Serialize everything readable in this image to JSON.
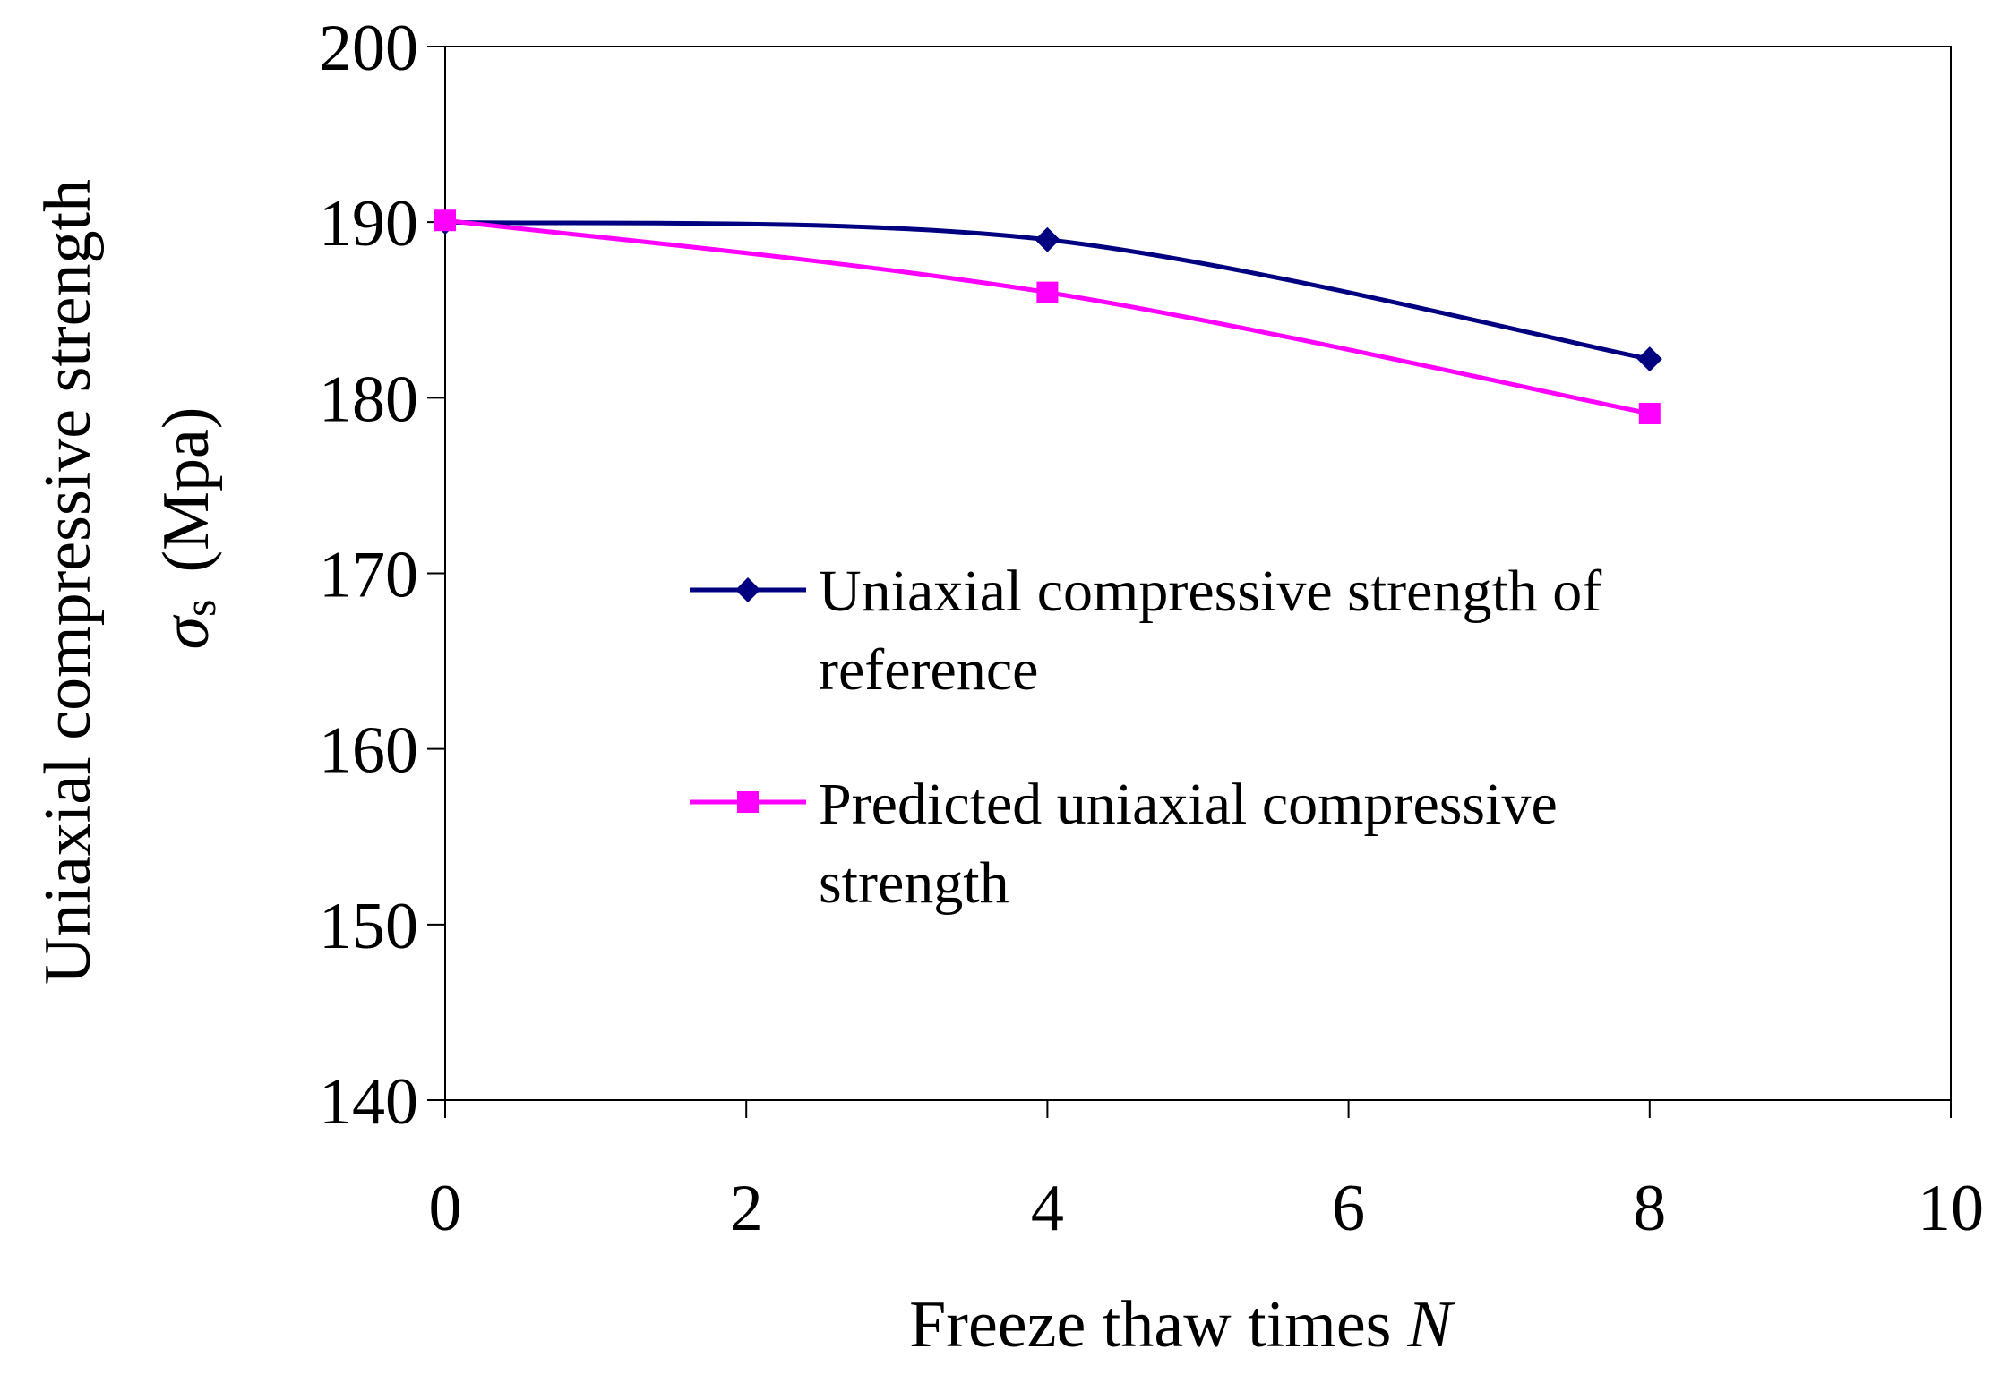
{
  "chart_data": {
    "type": "line",
    "x": [
      0,
      4,
      8
    ],
    "xlim": [
      0,
      10
    ],
    "xticks": [
      "0",
      "2",
      "4",
      "6",
      "8",
      "10"
    ],
    "ylim": [
      140,
      200
    ],
    "yticks": [
      "140",
      "150",
      "160",
      "170",
      "180",
      "190",
      "200"
    ],
    "xlabel": {
      "main": "Freeze thaw times",
      "var": "N"
    },
    "ylabel": {
      "line1": "Uniaxial compressive strength",
      "sym": "σ",
      "sub": "s",
      "unit": "(Mpa)"
    },
    "grid": false,
    "legend_position": "center-right",
    "smoothed": true,
    "series": [
      {
        "name_lines": [
          "Uniaxial compressive strength of",
          "reference"
        ],
        "values": [
          190,
          189,
          182.2
        ],
        "color": "#000080",
        "marker": "diamond"
      },
      {
        "name_lines": [
          "Predicted uniaxial compressive",
          "strength"
        ],
        "values": [
          190.1,
          186,
          179.1
        ],
        "color": "#ff00ff",
        "marker": "square"
      }
    ]
  }
}
